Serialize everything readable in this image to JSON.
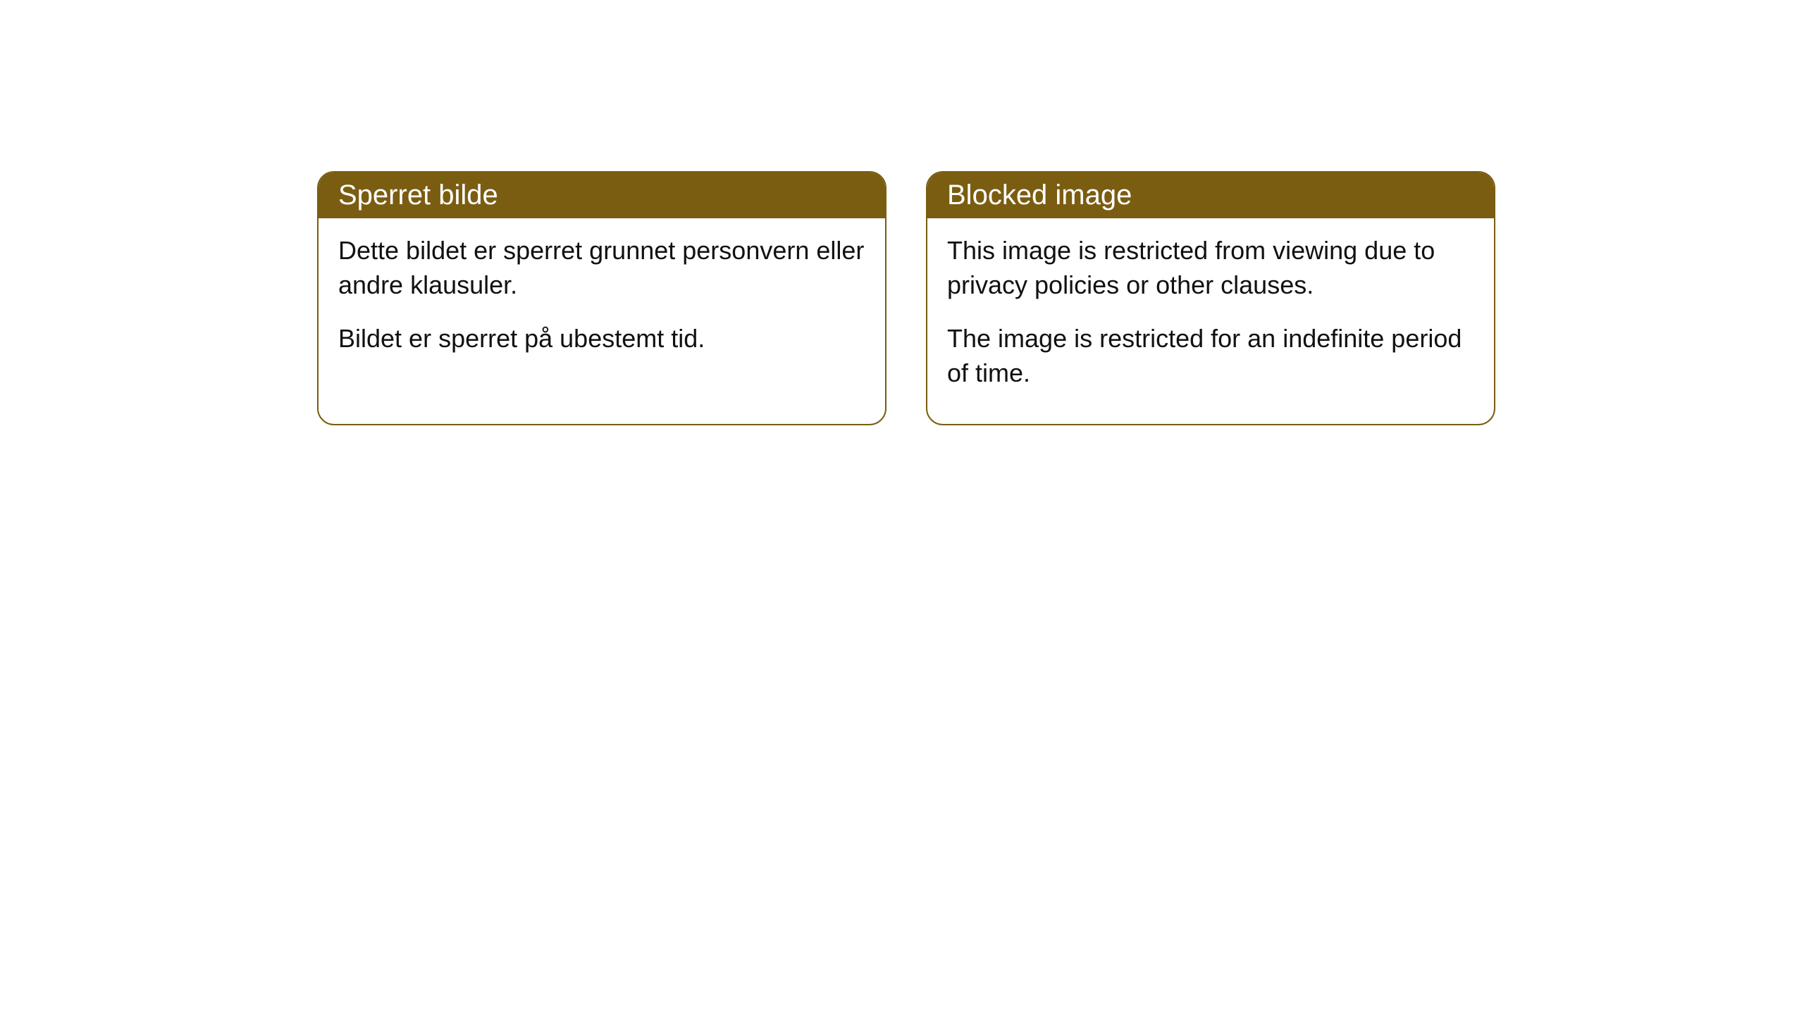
{
  "cards": [
    {
      "title": "Sperret bilde",
      "paragraph1": "Dette bildet er sperret grunnet personvern eller andre klausuler.",
      "paragraph2": "Bildet er sperret på ubestemt tid."
    },
    {
      "title": "Blocked image",
      "paragraph1": "This image is restricted from viewing due to privacy policies or other clauses.",
      "paragraph2": "The image is restricted for an indefinite period of time."
    }
  ],
  "styling": {
    "header_background": "#7a5d11",
    "header_text_color": "#ffffff",
    "border_color": "#7a5d11",
    "body_background": "#ffffff",
    "body_text_color": "#111111",
    "border_radius": 24,
    "title_fontsize": 40,
    "body_fontsize": 36
  }
}
